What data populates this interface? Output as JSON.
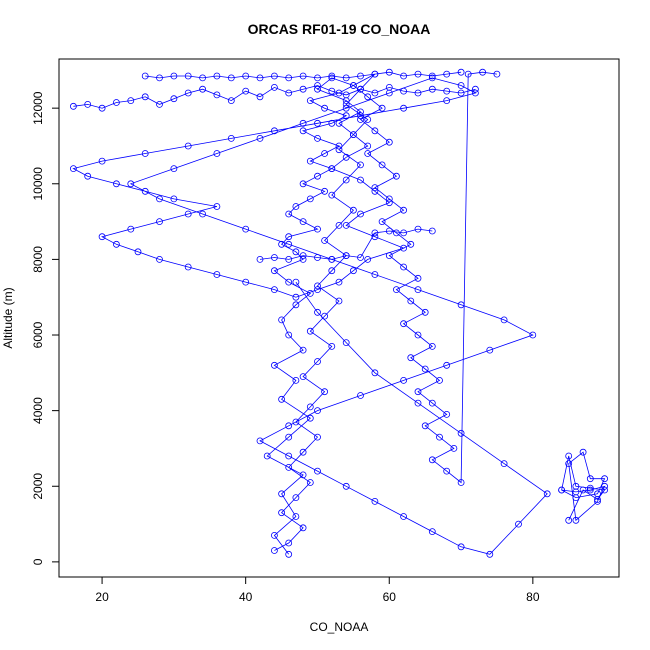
{
  "chart_data": {
    "type": "line",
    "title": "ORCAS RF01-19 CO_NOAA",
    "xlabel": "CO_NOAA",
    "ylabel": "Altitude (m)",
    "xlim": [
      14,
      92
    ],
    "ylim": [
      -400,
      13300
    ],
    "xticks": [
      20,
      40,
      60,
      80
    ],
    "yticks": [
      0,
      2000,
      4000,
      6000,
      8000,
      10000,
      12000
    ],
    "grid": false,
    "legend": "none",
    "color": "#0000ff",
    "marker": "open-circle",
    "series": [
      {
        "x": [
          46,
          44,
          47,
          45,
          48,
          43,
          46,
          49,
          45,
          47,
          44,
          48,
          46,
          45,
          47,
          49,
          46,
          44,
          48,
          47,
          45,
          46,
          50,
          48,
          46,
          47,
          49,
          51,
          48,
          50,
          52,
          49,
          51,
          53,
          50,
          48,
          52,
          54,
          51,
          49,
          53,
          55,
          52,
          50,
          54,
          56,
          53,
          55,
          57,
          54,
          52,
          56,
          58,
          60,
          56,
          54,
          58,
          62,
          57,
          55,
          53,
          50,
          47,
          44,
          40,
          36,
          32,
          28,
          25,
          22,
          20,
          24,
          28,
          32,
          36,
          30,
          26,
          22,
          18,
          16,
          20,
          26,
          32,
          38,
          44,
          50,
          56,
          62,
          68,
          72,
          70,
          66,
          60,
          54,
          48,
          42,
          36,
          30,
          24,
          28,
          34,
          40,
          46,
          52,
          58,
          64,
          70,
          76,
          80,
          74,
          68,
          62,
          56,
          50,
          46,
          42,
          46,
          50,
          54,
          58,
          62,
          66,
          70,
          74,
          78,
          82,
          76,
          70,
          64,
          58,
          54,
          50,
          47
        ],
        "y": [
          200,
          700,
          1200,
          1800,
          2300,
          2800,
          3300,
          3800,
          4300,
          4800,
          5200,
          5600,
          6000,
          6400,
          6800,
          7100,
          7400,
          7700,
          8000,
          8200,
          8400,
          8600,
          8800,
          9000,
          9200,
          9400,
          9600,
          9800,
          10000,
          10200,
          10400,
          10600,
          10800,
          11000,
          11200,
          11400,
          11600,
          11800,
          12000,
          12200,
          12400,
          12600,
          12800,
          12500,
          12200,
          11900,
          11600,
          11300,
          11000,
          10700,
          10400,
          10100,
          9800,
          9500,
          9200,
          8900,
          8600,
          8300,
          8000,
          7700,
          7400,
          7200,
          7000,
          7200,
          7400,
          7600,
          7800,
          8000,
          8200,
          8400,
          8600,
          8800,
          9000,
          9200,
          9400,
          9600,
          9800,
          10000,
          10200,
          10400,
          10600,
          10800,
          11000,
          11200,
          11400,
          11600,
          11800,
          12000,
          12200,
          12400,
          12600,
          12800,
          12400,
          12000,
          11600,
          11200,
          10800,
          10400,
          10000,
          9600,
          9200,
          8800,
          8400,
          8000,
          7600,
          7200,
          6800,
          6400,
          6000,
          5600,
          5200,
          4800,
          4400,
          4000,
          3600,
          3200,
          2800,
          2400,
          2000,
          1600,
          1200,
          800,
          400,
          200,
          1000,
          1800,
          2600,
          3400,
          4200,
          5000,
          5800,
          6600,
          7400
        ]
      },
      {
        "x": [
          44,
          46,
          48,
          45,
          47,
          49,
          46,
          48,
          50,
          47,
          49,
          51,
          48,
          50,
          52,
          49,
          51,
          53,
          50,
          52,
          54,
          51,
          53,
          55,
          52,
          54,
          56,
          53,
          55,
          57,
          54,
          56,
          58,
          55,
          57,
          59,
          56,
          58,
          60,
          57,
          59,
          61,
          58,
          60,
          62,
          59,
          61,
          63,
          60,
          62,
          64,
          61,
          63,
          65,
          62,
          64,
          66,
          63,
          65,
          67,
          64,
          66,
          68,
          65,
          67,
          69,
          66,
          68,
          70,
          71,
          73,
          75
        ],
        "y": [
          300,
          500,
          900,
          1300,
          1700,
          2100,
          2500,
          2900,
          3300,
          3700,
          4100,
          4500,
          4900,
          5300,
          5700,
          6100,
          6500,
          6900,
          7300,
          7700,
          8100,
          8500,
          8900,
          9300,
          9700,
          10100,
          10500,
          10900,
          11300,
          11700,
          12100,
          12500,
          12900,
          12600,
          12300,
          12000,
          11700,
          11400,
          11100,
          10800,
          10500,
          10200,
          9900,
          9600,
          9300,
          9000,
          8700,
          8400,
          8100,
          7800,
          7500,
          7200,
          6900,
          6600,
          6300,
          6000,
          5700,
          5400,
          5100,
          4800,
          4500,
          4200,
          3900,
          3600,
          3300,
          3000,
          2700,
          2400,
          2100,
          12900,
          12950,
          12900
        ]
      },
      {
        "x": [
          84,
          86,
          88,
          90,
          89,
          86,
          85,
          87,
          88,
          90,
          89,
          86,
          84,
          85,
          86,
          88,
          90,
          89,
          87,
          85
        ],
        "y": [
          1900,
          1850,
          1900,
          2000,
          1600,
          1100,
          2600,
          2900,
          2200,
          2200,
          1800,
          1700,
          1900,
          2800,
          2000,
          1950,
          1900,
          1650,
          1900,
          1100
        ]
      },
      {
        "x": [
          16,
          18,
          20,
          22,
          24,
          26,
          28,
          30,
          32,
          34,
          36,
          38,
          40,
          42,
          44,
          46,
          48,
          50,
          52,
          54,
          56,
          58,
          60,
          62,
          64,
          66,
          68,
          70,
          72
        ],
        "y": [
          12050,
          12100,
          12000,
          12150,
          12200,
          12300,
          12100,
          12250,
          12400,
          12500,
          12350,
          12200,
          12450,
          12300,
          12550,
          12400,
          12500,
          12600,
          12450,
          12350,
          12500,
          12400,
          12550,
          12450,
          12400,
          12500,
          12450,
          12400,
          12500
        ]
      },
      {
        "x": [
          26,
          28,
          30,
          32,
          34,
          36,
          38,
          40,
          42,
          44,
          46,
          48,
          50,
          52,
          54,
          56,
          58,
          60,
          62,
          64,
          66,
          68,
          70
        ],
        "y": [
          12850,
          12800,
          12850,
          12850,
          12800,
          12850,
          12800,
          12850,
          12800,
          12850,
          12800,
          12850,
          12800,
          12850,
          12800,
          12850,
          12900,
          12950,
          12850,
          12900,
          12850,
          12900,
          12950
        ]
      },
      {
        "x": [
          42,
          44,
          46,
          48,
          50,
          52,
          54,
          56,
          58,
          60,
          62,
          64,
          66
        ],
        "y": [
          8000,
          8050,
          8000,
          8100,
          8050,
          8000,
          8100,
          8050,
          8700,
          8750,
          8700,
          8800,
          8750
        ]
      }
    ]
  }
}
